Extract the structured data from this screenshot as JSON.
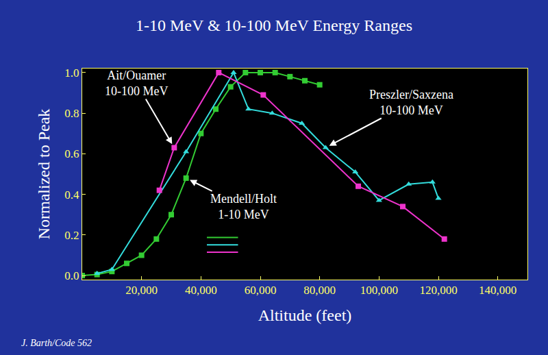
{
  "chart_data": {
    "type": "line",
    "title": "1-10 MeV & 10-100 MeV Energy Ranges",
    "x_label": "Altitude (feet)",
    "y_label": "Normalized to Peak",
    "footer": "J. Barth/Code 562",
    "xlim": [
      0,
      150000
    ],
    "ylim": [
      -0.02,
      1.02
    ],
    "xticks": [
      {
        "value": 20000,
        "label": "20,000"
      },
      {
        "value": 40000,
        "label": "40,000"
      },
      {
        "value": 60000,
        "label": "60,000"
      },
      {
        "value": 80000,
        "label": "80,000"
      },
      {
        "value": 100000,
        "label": "100,000"
      },
      {
        "value": 120000,
        "label": "120,000"
      },
      {
        "value": 140000,
        "label": "140,000"
      }
    ],
    "yticks": [
      {
        "value": 0,
        "label": "0.0"
      },
      0.2,
      0.4,
      0.6,
      0.8,
      {
        "value": 1,
        "label": "1.0"
      }
    ],
    "grid": false,
    "series": [
      {
        "name": "Mendell/Holt 1-10 MeV",
        "color": "#33cc33",
        "marker": "square",
        "line_style": "solid",
        "x": [
          0,
          5000,
          10000,
          15000,
          20000,
          25000,
          30000,
          35000,
          40000,
          45000,
          50000,
          55000,
          60000,
          65000,
          70000,
          75000,
          80000
        ],
        "values": [
          0,
          0.005,
          0.02,
          0.06,
          0.1,
          0.18,
          0.3,
          0.48,
          0.7,
          0.82,
          0.93,
          1.0,
          1.0,
          1.0,
          0.98,
          0.96,
          0.94
        ]
      },
      {
        "name": "Preszler/Saxzena 10-100 MeV",
        "color": "#33dddd",
        "marker": "triangle-up",
        "line_style": "solid",
        "x": [
          5000,
          10000,
          35000,
          51000,
          56000,
          64000,
          74000,
          82000,
          92000,
          100000,
          110000,
          118000,
          120000
        ],
        "values": [
          0.01,
          0.03,
          0.61,
          1.0,
          0.82,
          0.8,
          0.75,
          0.63,
          0.51,
          0.37,
          0.45,
          0.46,
          0.38
        ]
      },
      {
        "name": "Ait/Ouamer 10-100 MeV",
        "color": "#ee33cc",
        "marker": "square",
        "line_style": "solid",
        "x": [
          26000,
          31000,
          46000,
          61000,
          93000,
          108000,
          122000
        ],
        "values": [
          0.42,
          0.63,
          1.0,
          0.89,
          0.44,
          0.34,
          0.18
        ]
      }
    ]
  }
}
